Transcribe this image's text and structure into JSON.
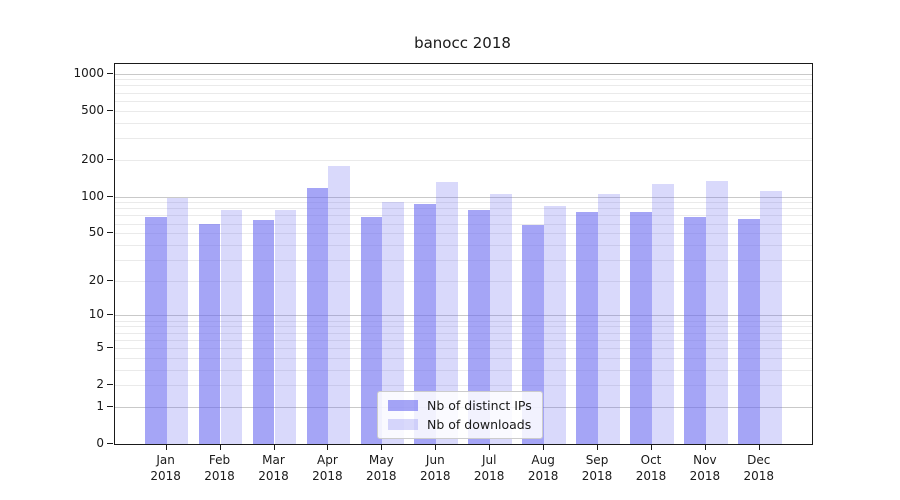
{
  "figure": {
    "background": "#ffffff",
    "axis_color": "#1a1a1a",
    "text_color": "#1a1a1a"
  },
  "chart_data": {
    "type": "bar",
    "title": "banocc 2018",
    "xlabel": "",
    "ylabel": "",
    "categories": [
      "Jan",
      "Feb",
      "Mar",
      "Apr",
      "May",
      "Jun",
      "Jul",
      "Aug",
      "Sep",
      "Oct",
      "Nov",
      "Dec"
    ],
    "year_line": "2018",
    "series": [
      {
        "name": "Nb of distinct IPs",
        "color": "rgba(105,105,240,0.60)",
        "values": [
          68,
          60,
          64,
          118,
          68,
          87,
          77,
          58,
          74,
          75,
          68,
          65
        ]
      },
      {
        "name": "Nb of downloads",
        "color": "rgba(105,105,240,0.25)",
        "values": [
          98,
          77,
          78,
          178,
          91,
          131,
          105,
          83,
          105,
          126,
          134,
          110
        ]
      }
    ],
    "yscale": "log1p",
    "ylim": [
      0,
      1193
    ],
    "y_tick_labels": [
      0,
      1,
      2,
      5,
      10,
      20,
      50,
      100,
      200,
      500,
      1000
    ],
    "grid": {
      "major_at": [
        1,
        10,
        100,
        1000
      ],
      "minor_subs": [
        2,
        3,
        4,
        5,
        6,
        7,
        8,
        9
      ],
      "major_color": "#c9c9c9",
      "minor_color": "#eaeaea"
    },
    "legend": {
      "position": "lower center"
    }
  }
}
